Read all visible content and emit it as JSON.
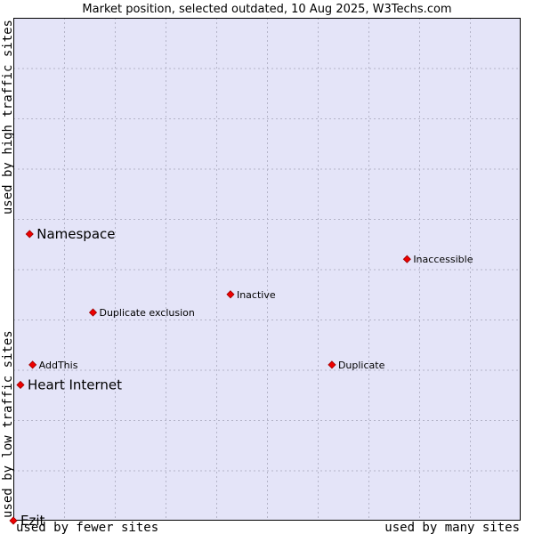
{
  "chart_data": {
    "type": "scatter",
    "title": "Market position, selected outdated, 10 Aug 2025, W3Techs.com",
    "xlabel_left": "used by fewer sites",
    "xlabel_right": "used by many sites",
    "ylabel_bottom": "used by low traffic sites",
    "ylabel_top": "used by high traffic sites",
    "xlim": [
      0,
      100
    ],
    "ylim": [
      0,
      100
    ],
    "grid": true,
    "colors": {
      "plot_bg": "#e4e4f8",
      "grid": "#b4b4c8",
      "border": "#000000",
      "point": "#ee0000",
      "point_edge": "#990000"
    },
    "points": [
      {
        "name": "Namespace",
        "x": 3.2,
        "y": 57.0,
        "size": "large"
      },
      {
        "name": "Inaccessible",
        "x": 77.6,
        "y": 52.0,
        "size": "small"
      },
      {
        "name": "Inactive",
        "x": 42.8,
        "y": 45.0,
        "size": "small"
      },
      {
        "name": "Duplicate exclusion",
        "x": 15.7,
        "y": 41.4,
        "size": "small"
      },
      {
        "name": "AddThis",
        "x": 3.8,
        "y": 31.0,
        "size": "small"
      },
      {
        "name": "Duplicate",
        "x": 62.8,
        "y": 31.0,
        "size": "small"
      },
      {
        "name": "Heart Internet",
        "x": 1.4,
        "y": 27.0,
        "size": "large"
      },
      {
        "name": "Ezit",
        "x": 0.0,
        "y": 0.0,
        "size": "large"
      }
    ]
  }
}
